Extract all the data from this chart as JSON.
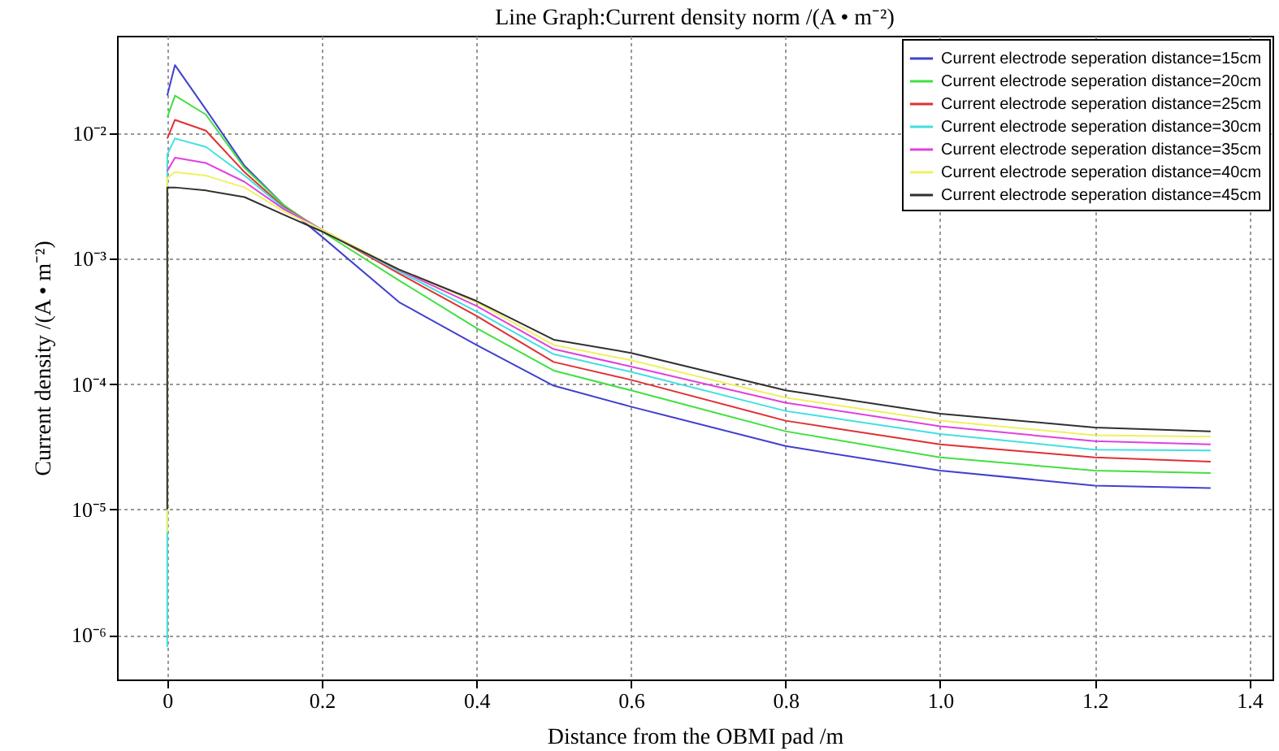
{
  "chart_data": {
    "type": "line",
    "title": "Line Graph:Current density norm /(A • m⁻²)",
    "xlabel": "Distance from the OBMI pad /m",
    "ylabel": "Current density /(A • m⁻²)",
    "x": [
      0,
      0.01,
      0.05,
      0.1,
      0.15,
      0.2,
      0.3,
      0.4,
      0.5,
      0.6,
      0.8,
      1.0,
      1.2,
      1.35
    ],
    "series": [
      {
        "name": "Current electrode seperation distance=15cm",
        "color": "#4040d0",
        "values": [
          0.02,
          0.035,
          0.0155,
          0.0055,
          0.0027,
          0.0015,
          0.00045,
          0.000205,
          9.7e-05,
          6.6e-05,
          3.2e-05,
          2.04e-05,
          1.55e-05,
          1.48e-05
        ]
      },
      {
        "name": "Current electrode seperation distance=20cm",
        "color": "#40e040",
        "values": [
          0.0134,
          0.02,
          0.0141,
          0.0053,
          0.0027,
          0.00165,
          0.00067,
          0.00028,
          0.000128,
          8.9e-05,
          4.2e-05,
          2.6e-05,
          2.04e-05,
          1.95e-05
        ]
      },
      {
        "name": "Current electrode seperation distance=25cm",
        "color": "#e03030",
        "values": [
          0.0091,
          0.0128,
          0.0105,
          0.0049,
          0.0026,
          0.0017,
          0.00076,
          0.00035,
          0.00015,
          0.000108,
          5.1e-05,
          3.3e-05,
          2.6e-05,
          2.4e-05
        ]
      },
      {
        "name": "Current electrode seperation distance=30cm",
        "color": "#40e0e0",
        "x": [
          0,
          0,
          0.01,
          0.05,
          0.1,
          0.15,
          0.2,
          0.3,
          0.4,
          0.5,
          0.6,
          0.8,
          1.0,
          1.2,
          1.35
        ],
        "values": [
          8e-07,
          0.0068,
          0.0091,
          0.0078,
          0.0046,
          0.00255,
          0.0017,
          0.00079,
          0.00038,
          0.000173,
          0.000125,
          6.1e-05,
          4e-05,
          3e-05,
          2.95e-05
        ]
      },
      {
        "name": "Current electrode seperation distance=35cm",
        "color": "#e040e0",
        "values": [
          0.005,
          0.0064,
          0.0058,
          0.0041,
          0.0025,
          0.0017,
          0.00081,
          0.00042,
          0.00019,
          0.000138,
          7.1e-05,
          4.6e-05,
          3.5e-05,
          3.3e-05
        ]
      },
      {
        "name": "Current electrode seperation distance=40cm",
        "color": "#f0f060",
        "x": [
          0,
          0,
          0.01,
          0.05,
          0.1,
          0.15,
          0.2,
          0.3,
          0.4,
          0.5,
          0.6,
          0.8,
          1.0,
          1.2,
          1.35
        ],
        "values": [
          6.6e-06,
          0.0044,
          0.0049,
          0.0046,
          0.0037,
          0.0024,
          0.0017,
          0.00082,
          0.00045,
          0.000205,
          0.000155,
          7.8e-05,
          5.1e-05,
          3.9e-05,
          3.8e-05
        ]
      },
      {
        "name": "Current electrode seperation distance=45cm",
        "color": "#303030",
        "x": [
          0,
          0,
          0.01,
          0.05,
          0.1,
          0.15,
          0.2,
          0.3,
          0.4,
          0.5,
          0.6,
          0.8,
          1.0,
          1.2,
          1.35
        ],
        "values": [
          1e-05,
          0.0037,
          0.0037,
          0.0035,
          0.0031,
          0.00225,
          0.00165,
          0.00082,
          0.00046,
          0.000226,
          0.000177,
          8.9e-05,
          5.8e-05,
          4.5e-05,
          4.2e-05
        ]
      }
    ],
    "xlim": [
      -0.065,
      1.43
    ],
    "ylim": [
      4.4e-07,
      0.06
    ],
    "xticks": [
      0,
      0.2,
      0.4,
      0.6,
      0.8,
      {
        "value": 1,
        "label": "1.0"
      },
      1.2,
      1.4
    ],
    "yticks": [
      {
        "value": 1e-06,
        "label": "10⁻⁶"
      },
      {
        "value": 1e-05,
        "label": "10⁻⁵"
      },
      {
        "value": 0.0001,
        "label": "10⁻⁴"
      },
      {
        "value": 0.001,
        "label": "10⁻³"
      },
      {
        "value": 0.01,
        "label": "10⁻²"
      }
    ],
    "log": "y",
    "grid": true,
    "legend": "top right",
    "line_style": "solid",
    "marker": "none"
  }
}
